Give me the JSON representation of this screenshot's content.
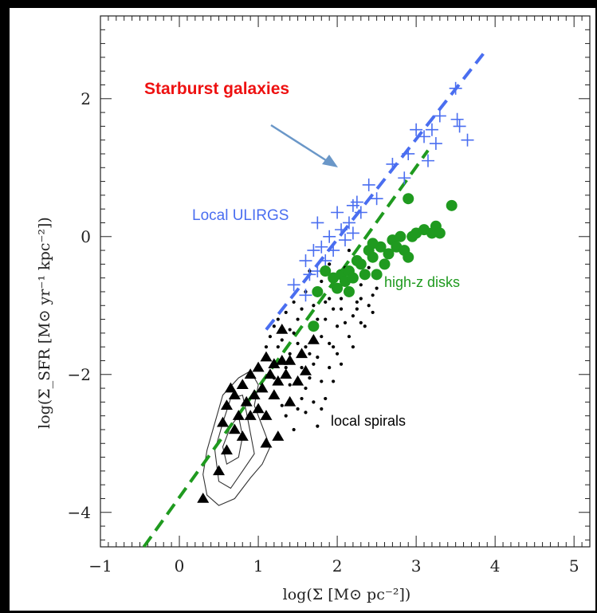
{
  "chart_data": {
    "type": "scatter",
    "title": "",
    "xlabel": "log(Σ [M⊙ pc⁻²])",
    "ylabel": "log(Σ_SFR [M⊙ yr⁻¹ kpc⁻²])",
    "xlim": [
      -1,
      5.2
    ],
    "ylim": [
      -4.5,
      3.2
    ],
    "x_ticks": [
      -1,
      0,
      1,
      2,
      3,
      4,
      5
    ],
    "y_ticks": [
      -4,
      -2,
      0,
      2
    ],
    "colors": {
      "ulirgs": "#4a6ef0",
      "disks": "#1f9a1f",
      "spirals": "#000000",
      "starburst_text": "#ee1111",
      "arrow": "#6a97c8"
    },
    "annotations": {
      "starburst": "Starburst galaxies",
      "ulirgs": "Local ULIRGS",
      "disks": "high-z disks",
      "spirals": "local spirals"
    },
    "lines": [
      {
        "style": "dashed",
        "color": "#4a6ef0",
        "x": [
          1.1,
          3.85
        ],
        "y": [
          -1.35,
          2.65
        ]
      },
      {
        "style": "dashed",
        "color": "#1f9a1f",
        "x": [
          -0.45,
          3.15
        ],
        "y": [
          -4.5,
          1.25
        ]
      }
    ],
    "series": [
      {
        "name": "Local ULIRGS",
        "marker": "plus",
        "color": "#4a6ef0",
        "points": [
          [
            1.45,
            -0.7
          ],
          [
            1.6,
            -0.35
          ],
          [
            1.65,
            -0.55
          ],
          [
            1.7,
            -0.2
          ],
          [
            1.75,
            -0.5
          ],
          [
            1.8,
            -0.15
          ],
          [
            1.85,
            -0.35
          ],
          [
            1.9,
            0.0
          ],
          [
            1.95,
            -0.2
          ],
          [
            2.0,
            0.35
          ],
          [
            2.05,
            0.1
          ],
          [
            2.1,
            -0.05
          ],
          [
            2.15,
            0.2
          ],
          [
            2.2,
            0.05
          ],
          [
            2.25,
            0.5
          ],
          [
            2.3,
            0.35
          ],
          [
            2.4,
            0.75
          ],
          [
            2.5,
            0.55
          ],
          [
            2.7,
            1.05
          ],
          [
            2.9,
            1.2
          ],
          [
            3.0,
            1.55
          ],
          [
            3.1,
            1.45
          ],
          [
            3.2,
            1.55
          ],
          [
            3.25,
            1.35
          ],
          [
            3.5,
            2.15
          ],
          [
            3.52,
            1.7
          ],
          [
            3.55,
            1.6
          ],
          [
            3.65,
            1.4
          ],
          [
            1.75,
            0.2
          ],
          [
            2.2,
            0.45
          ],
          [
            3.15,
            1.1
          ],
          [
            3.3,
            1.75
          ],
          [
            1.6,
            -0.85
          ],
          [
            2.85,
            0.85
          ]
        ]
      },
      {
        "name": "high-z disks",
        "marker": "circle",
        "color": "#1f9a1f",
        "points": [
          [
            1.75,
            -0.8
          ],
          [
            1.85,
            -0.5
          ],
          [
            1.95,
            -0.6
          ],
          [
            2.0,
            -0.75
          ],
          [
            2.05,
            -0.55
          ],
          [
            2.1,
            -0.65
          ],
          [
            2.15,
            -0.5
          ],
          [
            2.2,
            -0.6
          ],
          [
            2.25,
            -0.35
          ],
          [
            2.3,
            -0.4
          ],
          [
            2.35,
            -0.55
          ],
          [
            2.4,
            -0.2
          ],
          [
            2.45,
            -0.3
          ],
          [
            2.5,
            -0.55
          ],
          [
            2.55,
            -0.15
          ],
          [
            2.6,
            -0.4
          ],
          [
            2.65,
            -0.25
          ],
          [
            2.7,
            -0.05
          ],
          [
            2.75,
            -0.15
          ],
          [
            2.8,
            0.0
          ],
          [
            2.85,
            -0.2
          ],
          [
            2.9,
            -0.3
          ],
          [
            2.95,
            0.0
          ],
          [
            3.0,
            0.05
          ],
          [
            3.1,
            0.1
          ],
          [
            3.2,
            0.05
          ],
          [
            3.25,
            0.15
          ],
          [
            3.3,
            0.05
          ],
          [
            3.45,
            0.45
          ],
          [
            2.9,
            0.55
          ],
          [
            1.7,
            -1.3
          ],
          [
            2.45,
            -0.1
          ],
          [
            2.15,
            -0.8
          ]
        ]
      },
      {
        "name": "local spirals",
        "marker": "triangle",
        "color": "#000000",
        "points": [
          [
            0.3,
            -3.8
          ],
          [
            0.5,
            -3.4
          ],
          [
            0.6,
            -3.1
          ],
          [
            0.55,
            -2.7
          ],
          [
            0.6,
            -2.45
          ],
          [
            0.7,
            -2.8
          ],
          [
            0.7,
            -2.3
          ],
          [
            0.75,
            -2.6
          ],
          [
            0.8,
            -2.9
          ],
          [
            0.8,
            -2.15
          ],
          [
            0.85,
            -2.4
          ],
          [
            0.9,
            -2.6
          ],
          [
            0.9,
            -2.0
          ],
          [
            0.95,
            -2.3
          ],
          [
            1.0,
            -2.5
          ],
          [
            1.0,
            -1.9
          ],
          [
            1.05,
            -2.2
          ],
          [
            1.1,
            -2.6
          ],
          [
            1.1,
            -1.75
          ],
          [
            1.15,
            -2.0
          ],
          [
            1.2,
            -2.3
          ],
          [
            1.2,
            -1.85
          ],
          [
            1.25,
            -2.1
          ],
          [
            1.3,
            -1.8
          ],
          [
            1.35,
            -2.0
          ],
          [
            1.4,
            -2.4
          ],
          [
            1.4,
            -1.8
          ],
          [
            1.5,
            -2.1
          ],
          [
            1.55,
            -1.7
          ],
          [
            1.6,
            -1.95
          ],
          [
            1.7,
            -1.5
          ],
          [
            1.1,
            -3.0
          ],
          [
            1.25,
            -2.9
          ],
          [
            0.65,
            -2.2
          ],
          [
            1.3,
            -1.35
          ]
        ]
      }
    ],
    "spiral_dots": [
      [
        1.2,
        -1.3
      ],
      [
        1.3,
        -1.5
      ],
      [
        1.35,
        -1.1
      ],
      [
        1.4,
        -1.7
      ],
      [
        1.45,
        -1.4
      ],
      [
        1.5,
        -1.2
      ],
      [
        1.55,
        -1.9
      ],
      [
        1.6,
        -1.6
      ],
      [
        1.65,
        -1.3
      ],
      [
        1.7,
        -1.0
      ],
      [
        1.75,
        -1.75
      ],
      [
        1.8,
        -1.45
      ],
      [
        1.85,
        -1.2
      ],
      [
        1.9,
        -0.9
      ],
      [
        1.95,
        -1.6
      ],
      [
        2.0,
        -1.3
      ],
      [
        2.05,
        -1.05
      ],
      [
        2.1,
        -0.8
      ],
      [
        2.15,
        -1.45
      ],
      [
        2.2,
        -1.15
      ],
      [
        2.25,
        -0.95
      ],
      [
        2.3,
        -0.7
      ],
      [
        2.35,
        -1.3
      ],
      [
        2.4,
        -1.0
      ],
      [
        2.45,
        -0.85
      ],
      [
        2.5,
        -0.6
      ],
      [
        2.1,
        -0.45
      ],
      [
        1.6,
        -2.2
      ],
      [
        1.5,
        -2.5
      ],
      [
        1.45,
        -2.8
      ],
      [
        1.7,
        -2.4
      ],
      [
        1.8,
        -2.1
      ],
      [
        1.9,
        -1.9
      ],
      [
        2.0,
        -1.7
      ],
      [
        1.35,
        -2.6
      ],
      [
        1.55,
        -2.35
      ],
      [
        1.75,
        -2.75
      ],
      [
        1.65,
        -2.05
      ],
      [
        2.2,
        -1.6
      ],
      [
        2.3,
        -1.25
      ],
      [
        1.25,
        -1.6
      ],
      [
        1.15,
        -1.45
      ],
      [
        1.45,
        -0.95
      ],
      [
        1.6,
        -0.8
      ],
      [
        1.8,
        -0.65
      ],
      [
        2.0,
        -0.55
      ],
      [
        2.25,
        -0.3
      ],
      [
        2.4,
        -0.45
      ],
      [
        1.85,
        -2.35
      ],
      [
        1.95,
        -2.1
      ],
      [
        2.05,
        -1.85
      ],
      [
        1.4,
        -2.15
      ],
      [
        1.3,
        -2.45
      ],
      [
        1.7,
        -1.85
      ],
      [
        1.9,
        -1.55
      ],
      [
        2.1,
        -1.25
      ],
      [
        2.25,
        -1.05
      ],
      [
        1.55,
        -1.05
      ],
      [
        1.75,
        -1.2
      ],
      [
        1.95,
        -1.05
      ],
      [
        2.15,
        -0.65
      ],
      [
        2.35,
        -0.55
      ],
      [
        1.5,
        -1.55
      ],
      [
        1.65,
        -1.7
      ],
      [
        1.85,
        -0.95
      ],
      [
        2.05,
        -0.9
      ],
      [
        1.35,
        -1.9
      ],
      [
        1.2,
        -2.05
      ],
      [
        1.6,
        -2.55
      ],
      [
        1.8,
        -2.5
      ],
      [
        2.45,
        -1.1
      ],
      [
        2.3,
        -0.9
      ],
      [
        2.5,
        -0.75
      ],
      [
        1.95,
        -0.75
      ],
      [
        1.4,
        -1.35
      ],
      [
        1.25,
        -1.2
      ],
      [
        1.1,
        -1.6
      ],
      [
        1.65,
        -0.5
      ],
      [
        1.9,
        -0.4
      ],
      [
        2.15,
        -0.2
      ]
    ]
  }
}
